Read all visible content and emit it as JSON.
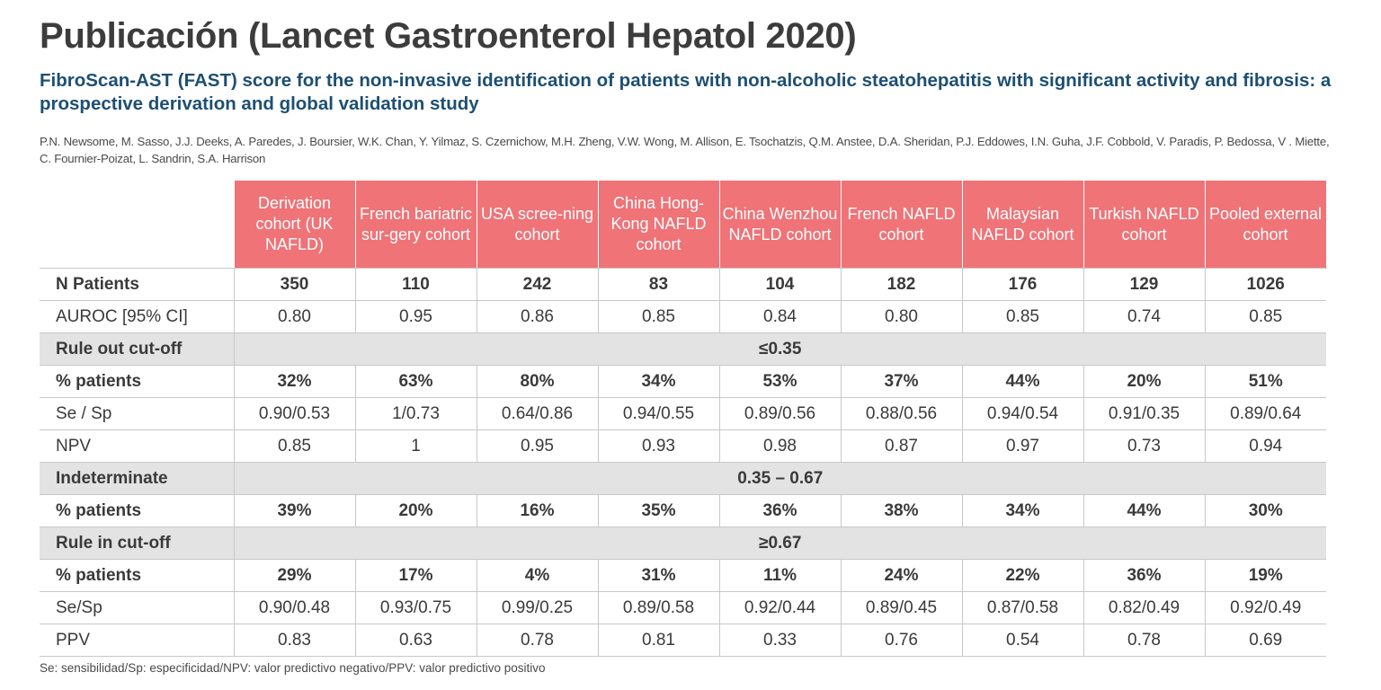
{
  "title": "Publicación (Lancet Gastroenterol Hepatol 2020)",
  "subtitle": "FibroScan-AST (FAST) score for the non-invasive identification of patients with non-alcoholic steatohepatitis with significant activity and fibrosis: a prospective derivation and global validation study",
  "authors": "P.N. Newsome, M. Sasso, J.J. Deeks, A. Paredes, J. Boursier, W.K. Chan, Y. Yilmaz, S. Czernichow, M.H. Zheng, V.W. Wong, M. Allison, E. Tsochatzis, Q.M. Anstee, D.A. Sheridan, P.J. Eddowes, I.N. Guha, J.F. Cobbold, V. Paradis, P. Bedossa, V . Miette, C. Fournier-Poizat, L. Sandrin, S.A. Harrison",
  "table": {
    "columns": [
      "Derivation cohort (UK NAFLD)",
      "French bariatric sur-gery cohort",
      "USA scree-ning cohort",
      "China Hong-Kong NAFLD cohort",
      "China Wenzhou NAFLD cohort",
      "French NAFLD cohort",
      "Malaysian NAFLD cohort",
      "Turkish NAFLD cohort",
      "Pooled external cohort"
    ],
    "rows": [
      {
        "kind": "bold",
        "label": "N Patients",
        "values": [
          "350",
          "110",
          "242",
          "83",
          "104",
          "182",
          "176",
          "129",
          "1026"
        ]
      },
      {
        "kind": "normal",
        "label": "AUROC [95% CI]",
        "values": [
          "0.80",
          "0.95",
          "0.86",
          "0.85",
          "0.84",
          "0.80",
          "0.85",
          "0.74",
          "0.85"
        ]
      },
      {
        "kind": "band",
        "label": "Rule out cut-off",
        "value": "≤0.35"
      },
      {
        "kind": "bold",
        "label": "% patients",
        "values": [
          "32%",
          "63%",
          "80%",
          "34%",
          "53%",
          "37%",
          "44%",
          "20%",
          "51%"
        ]
      },
      {
        "kind": "normal",
        "label": "Se / Sp",
        "values": [
          "0.90/0.53",
          "1/0.73",
          "0.64/0.86",
          "0.94/0.55",
          "0.89/0.56",
          "0.88/0.56",
          "0.94/0.54",
          "0.91/0.35",
          "0.89/0.64"
        ]
      },
      {
        "kind": "normal",
        "label": "NPV",
        "values": [
          "0.85",
          "1",
          "0.95",
          "0.93",
          "0.98",
          "0.87",
          "0.97",
          "0.73",
          "0.94"
        ]
      },
      {
        "kind": "band",
        "label": "Indeterminate",
        "value": "0.35 – 0.67"
      },
      {
        "kind": "bold",
        "label": "% patients",
        "values": [
          "39%",
          "20%",
          "16%",
          "35%",
          "36%",
          "38%",
          "34%",
          "44%",
          "30%"
        ]
      },
      {
        "kind": "band",
        "label": "Rule in cut-off",
        "value": "≥0.67"
      },
      {
        "kind": "bold",
        "label": "% patients",
        "values": [
          "29%",
          "17%",
          "4%",
          "31%",
          "11%",
          "24%",
          "22%",
          "36%",
          "19%"
        ]
      },
      {
        "kind": "normal",
        "label": "Se/Sp",
        "values": [
          "0.90/0.48",
          "0.93/0.75",
          "0.99/0.25",
          "0.89/0.58",
          "0.92/0.44",
          "0.89/0.45",
          "0.87/0.58",
          "0.82/0.49",
          "0.92/0.49"
        ]
      },
      {
        "kind": "normal",
        "label": "PPV",
        "values": [
          "0.83",
          "0.63",
          "0.78",
          "0.81",
          "0.33",
          "0.76",
          "0.54",
          "0.78",
          "0.69"
        ]
      }
    ]
  },
  "footnote": "Se: sensibilidad/Sp: especificidad/NPV: valor predictivo negativo/PPV: valor predictivo positivo",
  "colors": {
    "header_fill": "#ef7377",
    "subtitle": "#1d4f73",
    "band_fill": "#e3e3e4"
  }
}
